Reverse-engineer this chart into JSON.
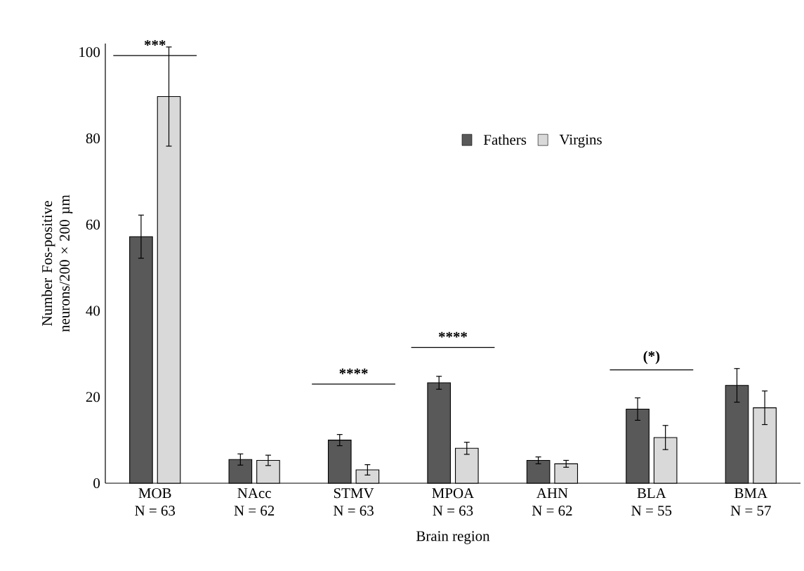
{
  "chart_data": {
    "type": "bar",
    "xlabel": "Brain region",
    "ylabel": "Number Fos-positive neurons/200 × 200 µm",
    "categories": [
      "MOB N = 63",
      "NAcc N = 62",
      "STMV N = 63",
      "MPOA N = 63",
      "AHN N = 62",
      "BLA N = 55",
      "BMA N = 57"
    ],
    "series": [
      {
        "name": "Fathers",
        "color": "#595959",
        "values": [
          57.2,
          5.5,
          10.0,
          23.3,
          5.3,
          17.2,
          22.7
        ],
        "errors": [
          5.0,
          1.3,
          1.3,
          1.5,
          0.8,
          2.6,
          3.9
        ]
      },
      {
        "name": "Virgins",
        "color": "#d9d9d9",
        "values": [
          89.7,
          5.3,
          3.1,
          8.1,
          4.5,
          10.6,
          17.5
        ],
        "errors": [
          11.5,
          1.2,
          1.2,
          1.4,
          0.8,
          2.8,
          3.9
        ]
      }
    ],
    "ylim": [
      0,
      102
    ],
    "yticks": [
      0,
      20,
      40,
      60,
      80,
      100
    ],
    "legend": "top right",
    "annotations": [
      "***",
      "****",
      "****",
      "(*)"
    ]
  }
}
